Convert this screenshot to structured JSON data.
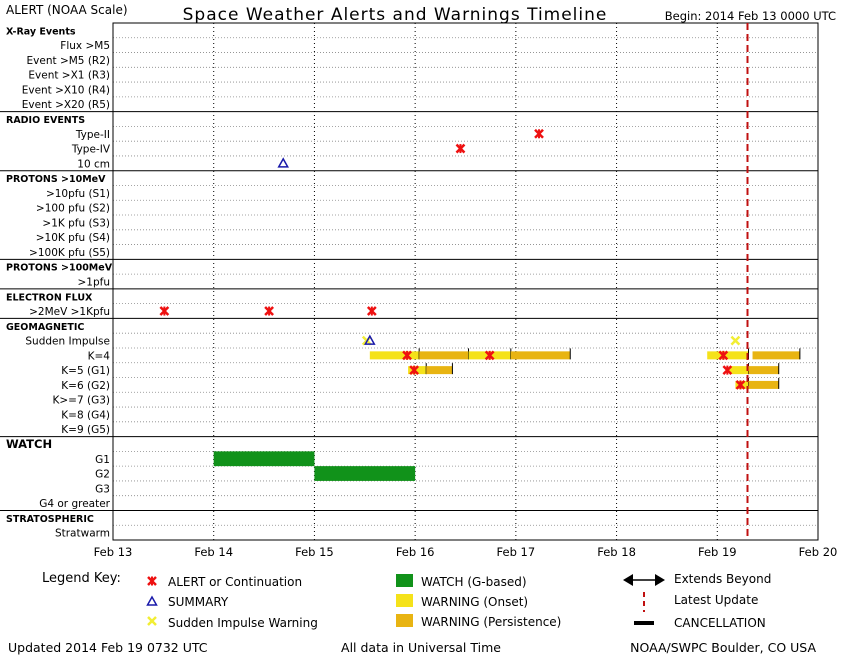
{
  "header": {
    "left": "ALERT (NOAA Scale)",
    "title": "Space Weather Alerts and Warnings Timeline",
    "begin": "Begin: 2014 Feb 13 0000 UTC"
  },
  "footer": {
    "updated": "Updated 2014 Feb 19 0732 UTC",
    "note": "All data in Universal Time",
    "credit": "NOAA/SWPC Boulder, CO USA"
  },
  "legend": {
    "title": "Legend Key:",
    "items": [
      {
        "id": "alert",
        "label": "ALERT or Continuation"
      },
      {
        "id": "summary",
        "label": "SUMMARY"
      },
      {
        "id": "sudden",
        "label": "Sudden Impulse Warning"
      },
      {
        "id": "watch",
        "label": "WATCH (G-based)"
      },
      {
        "id": "warn-onset",
        "label": "WARNING (Onset)"
      },
      {
        "id": "warn-persist",
        "label": "WARNING (Persistence)"
      },
      {
        "id": "extends",
        "label": "Extends Beyond"
      },
      {
        "id": "latest",
        "label": "Latest Update"
      },
      {
        "id": "cancel",
        "label": "CANCELLATION"
      }
    ]
  },
  "colors": {
    "alert": "#ee1111",
    "summary": "#1a1aaa",
    "sudden": "#f2ee33",
    "watch": "#11921a",
    "warn_onset": "#f5e21a",
    "warn_persist": "#e8b412",
    "latest": "#c01010"
  },
  "chart_data": {
    "type": "timeline",
    "title": "Space Weather Alerts and Warnings Timeline",
    "x_axis": {
      "start": "2014-02-13",
      "end": "2014-02-20",
      "ticks": [
        "Feb 13",
        "Feb 14",
        "Feb 15",
        "Feb 16",
        "Feb 17",
        "Feb 18",
        "Feb 19",
        "Feb 20"
      ]
    },
    "latest_update_day": 19.3,
    "rows": [
      {
        "label": "X-Ray Events",
        "header": true
      },
      {
        "label": "Flux >M5"
      },
      {
        "label": "Event >M5 (R2)"
      },
      {
        "label": "Event >X1 (R3)"
      },
      {
        "label": "Event >X10 (R4)"
      },
      {
        "label": "Event >X20 (R5)"
      },
      {
        "label": "RADIO EVENTS",
        "header": true
      },
      {
        "label": "Type-II"
      },
      {
        "label": "Type-IV"
      },
      {
        "label": "10 cm"
      },
      {
        "label": "PROTONS >10MeV",
        "header": true
      },
      {
        "label": ">10pfu (S1)"
      },
      {
        "label": ">100 pfu (S2)"
      },
      {
        "label": ">1K pfu (S3)"
      },
      {
        "label": ">10K pfu (S4)"
      },
      {
        "label": ">100K pfu (S5)"
      },
      {
        "label": "PROTONS >100MeV",
        "header": true
      },
      {
        "label": ">1pfu"
      },
      {
        "label": "ELECTRON FLUX",
        "header": true
      },
      {
        "label": ">2MeV >1Kpfu"
      },
      {
        "label": "GEOMAGNETIC",
        "header": true
      },
      {
        "label": "Sudden Impulse"
      },
      {
        "label": "K=4"
      },
      {
        "label": "K=5 (G1)"
      },
      {
        "label": "K=6 (G2)"
      },
      {
        "label": "K>=7 (G3)"
      },
      {
        "label": "K=8 (G4)"
      },
      {
        "label": "K=9 (G5)"
      },
      {
        "label": "WATCH",
        "header": true,
        "big": true
      },
      {
        "label": "G1"
      },
      {
        "label": "G2"
      },
      {
        "label": "G3"
      },
      {
        "label": "G4 or greater"
      },
      {
        "label": "STRATOSPHERIC",
        "header": true
      },
      {
        "label": "Stratwarm"
      }
    ],
    "events": [
      {
        "row": "Type-II",
        "kind": "alert",
        "day": 17.23
      },
      {
        "row": "Type-IV",
        "kind": "alert",
        "day": 16.45
      },
      {
        "row": "10 cm",
        "kind": "summary",
        "day": 14.69
      },
      {
        "row": ">2MeV >1Kpfu",
        "kind": "alert",
        "day": 13.51
      },
      {
        "row": ">2MeV >1Kpfu",
        "kind": "alert",
        "day": 14.55
      },
      {
        "row": ">2MeV >1Kpfu",
        "kind": "alert",
        "day": 15.57
      },
      {
        "row": "Sudden Impulse",
        "kind": "sudden",
        "day": 15.52
      },
      {
        "row": "Sudden Impulse",
        "kind": "summary",
        "day": 15.55
      },
      {
        "row": "Sudden Impulse",
        "kind": "sudden",
        "day": 19.18
      },
      {
        "row": "K=4",
        "kind": "alert",
        "day": 15.92
      },
      {
        "row": "K=4",
        "kind": "alert",
        "day": 16.74
      },
      {
        "row": "K=4",
        "kind": "alert",
        "day": 19.06
      },
      {
        "row": "K=5 (G1)",
        "kind": "alert",
        "day": 15.99
      },
      {
        "row": "K=5 (G1)",
        "kind": "alert",
        "day": 19.1
      },
      {
        "row": "K=6 (G2)",
        "kind": "alert",
        "day": 19.23
      }
    ],
    "warnings": [
      {
        "row": "K=4",
        "kind": "onset",
        "start": 15.55,
        "end": 16.04
      },
      {
        "row": "K=4",
        "kind": "persist",
        "start": 16.04,
        "end": 16.53
      },
      {
        "row": "K=4",
        "kind": "onset",
        "start": 16.53,
        "end": 16.95
      },
      {
        "row": "K=4",
        "kind": "persist",
        "start": 16.95,
        "end": 17.54
      },
      {
        "row": "K=4",
        "kind": "onset",
        "start": 18.9,
        "end": 19.31
      },
      {
        "row": "K=4",
        "kind": "persist",
        "start": 19.35,
        "end": 19.82
      },
      {
        "row": "K=5 (G1)",
        "kind": "onset",
        "start": 15.93,
        "end": 16.11
      },
      {
        "row": "K=5 (G1)",
        "kind": "persist",
        "start": 16.11,
        "end": 16.37
      },
      {
        "row": "K=5 (G1)",
        "kind": "onset",
        "start": 19.12,
        "end": 19.31
      },
      {
        "row": "K=5 (G1)",
        "kind": "persist",
        "start": 19.31,
        "end": 19.61
      },
      {
        "row": "K=6 (G2)",
        "kind": "onset",
        "start": 19.18,
        "end": 19.31
      },
      {
        "row": "K=6 (G2)",
        "kind": "persist",
        "start": 19.31,
        "end": 19.61
      }
    ],
    "watches": [
      {
        "row": "G1",
        "kind": "watch",
        "start": 14.0,
        "end": 15.0
      },
      {
        "row": "G2",
        "kind": "watch",
        "start": 15.0,
        "end": 16.0
      }
    ]
  }
}
